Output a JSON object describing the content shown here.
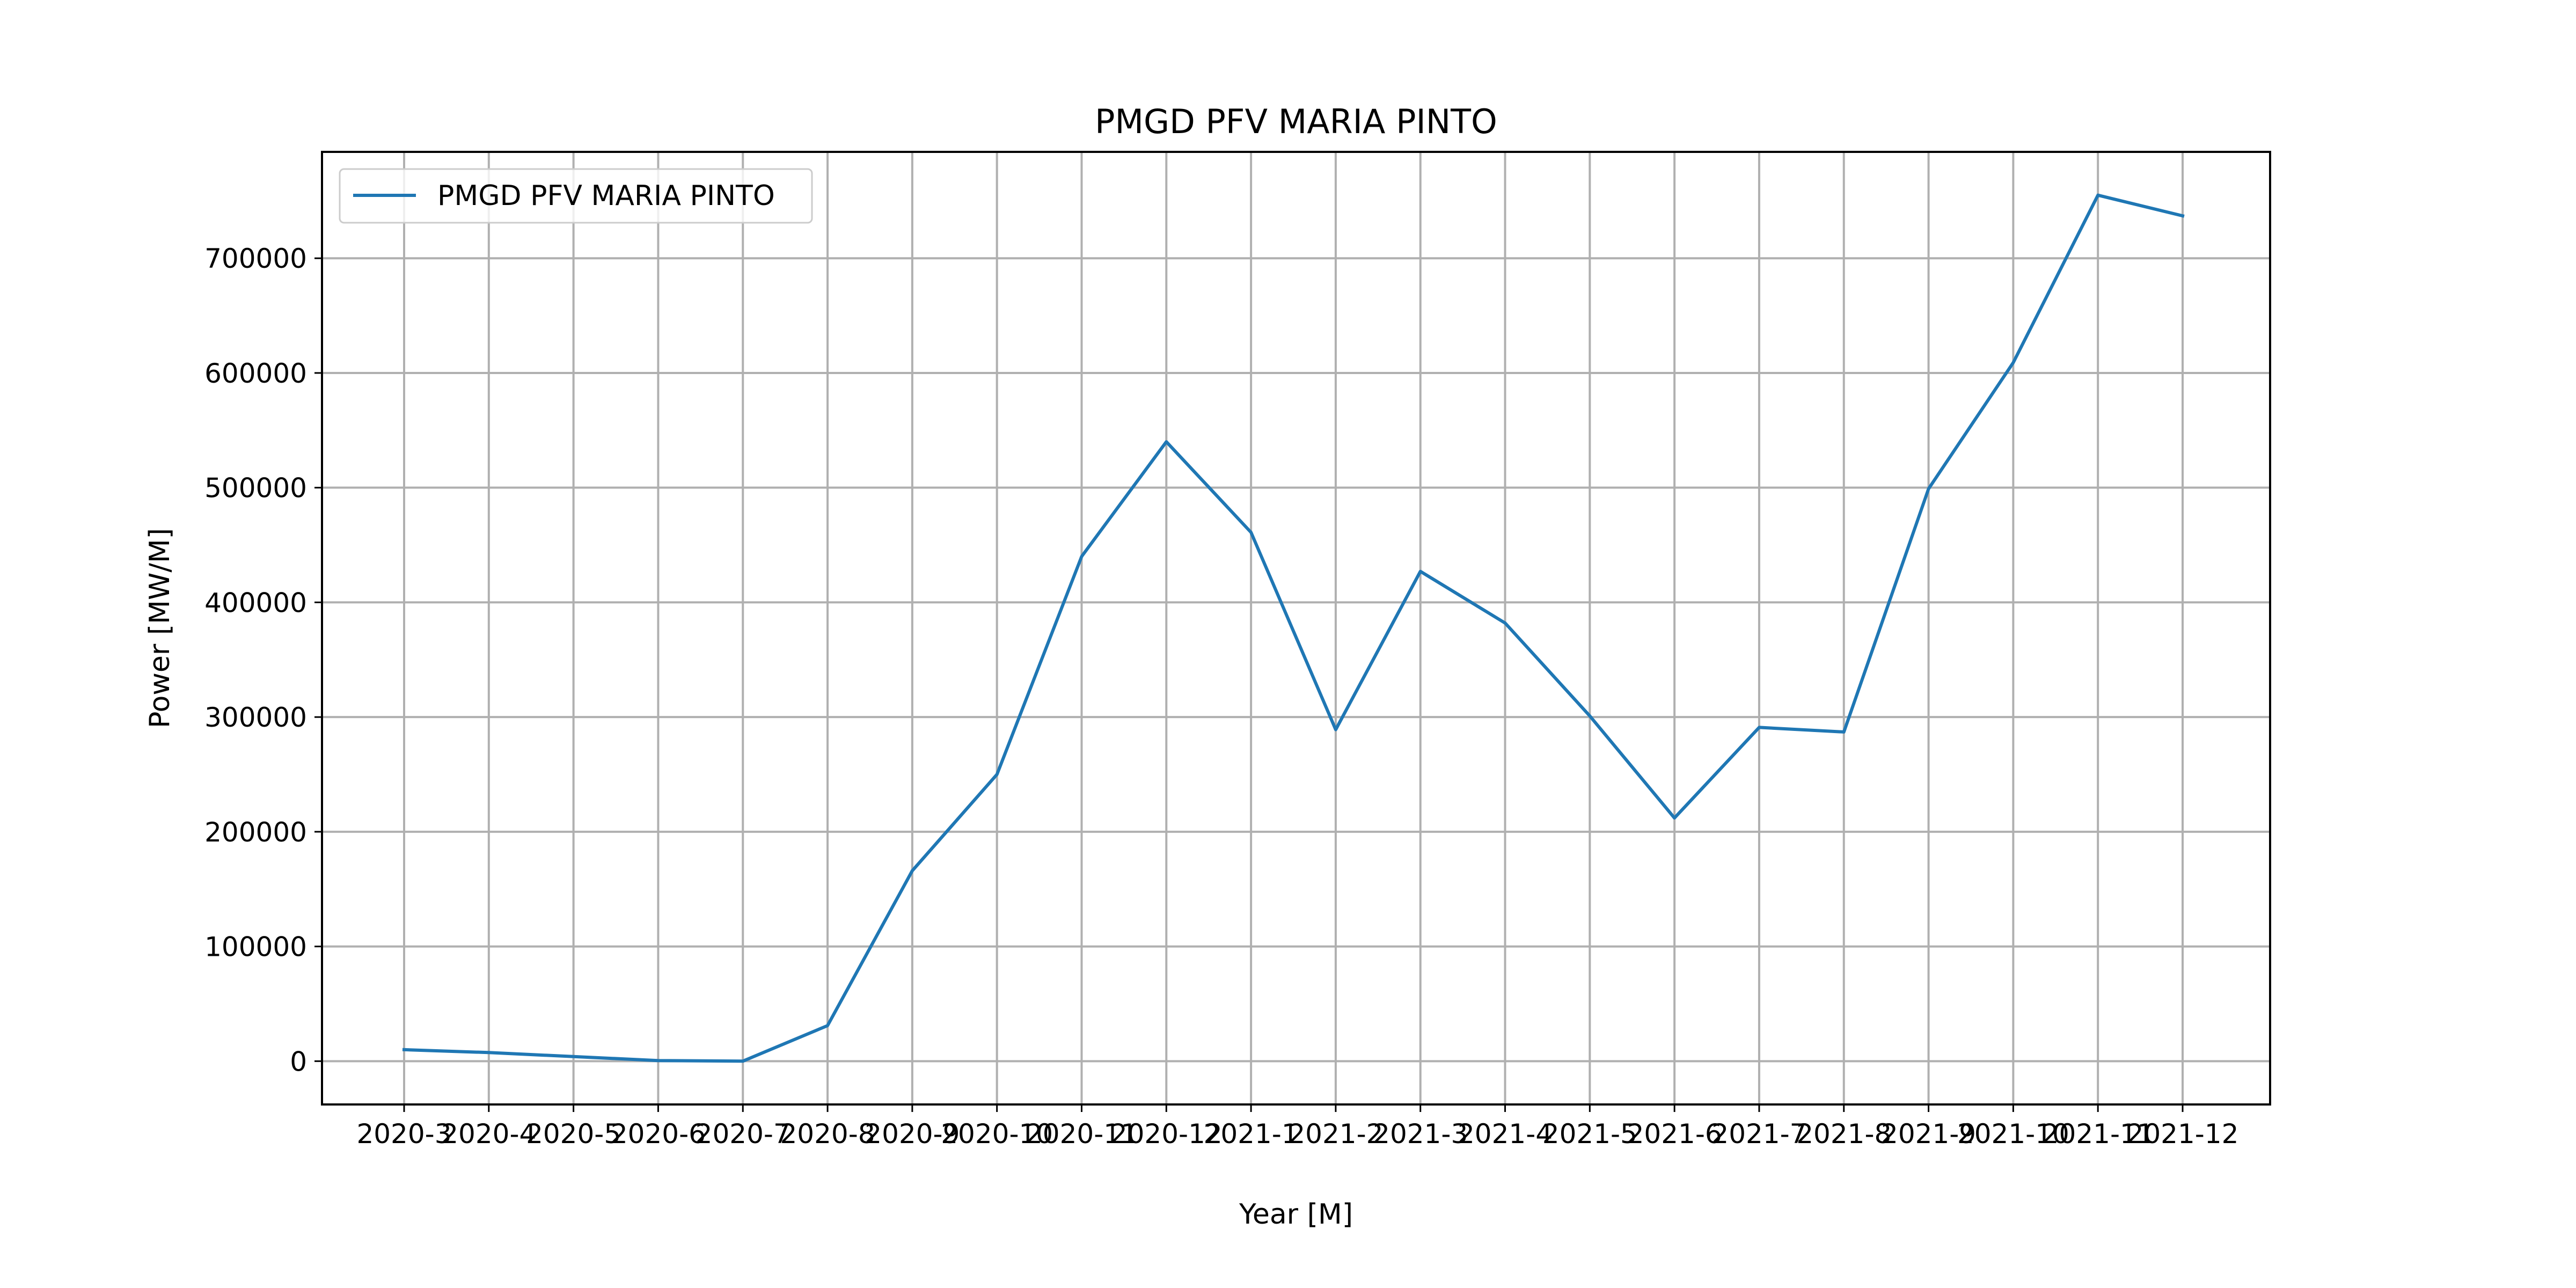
{
  "chart_data": {
    "type": "line",
    "title": "PMGD PFV MARIA PINTO",
    "xlabel": "Year [M]",
    "ylabel": "Power [MW/M]",
    "categories": [
      "2020-3",
      "2020-4",
      "2020-5",
      "2020-6",
      "2020-7",
      "2020-8",
      "2020-9",
      "2020-10",
      "2020-11",
      "2020-12",
      "2021-1",
      "2021-2",
      "2021-3",
      "2021-4",
      "2021-5",
      "2021-6",
      "2021-7",
      "2021-8",
      "2021-9",
      "2021-10",
      "2021-11",
      "2021-12"
    ],
    "series": [
      {
        "name": "PMGD PFV MARIA PINTO",
        "color": "#1f77b4",
        "values": [
          10000,
          7500,
          4000,
          500,
          0,
          31000,
          166000,
          250000,
          440000,
          540000,
          461000,
          289000,
          427000,
          382000,
          301000,
          212000,
          291000,
          287000,
          499000,
          609000,
          755000,
          737000
        ]
      }
    ],
    "ylim": [
      -37750,
      792750
    ],
    "yticks": [
      0,
      100000,
      200000,
      300000,
      400000,
      500000,
      600000,
      700000
    ],
    "grid": true,
    "legend_position": "top-left"
  }
}
